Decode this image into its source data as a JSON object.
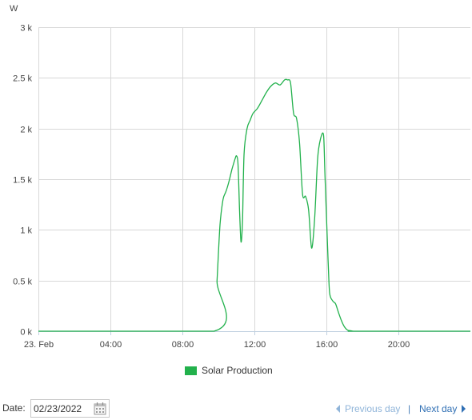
{
  "colors": {
    "series": "#22b14c",
    "grid": "#d8d8d8",
    "axis": "#c0d0e0",
    "link": "#2f6fb4",
    "link_disabled": "#8fb4d9"
  },
  "chart_data": {
    "type": "line",
    "ylabel": "W",
    "ylim": [
      0,
      3000
    ],
    "y_ticks": [
      {
        "value": 0,
        "label": "0 k"
      },
      {
        "value": 500,
        "label": "0.5 k"
      },
      {
        "value": 1000,
        "label": "1 k"
      },
      {
        "value": 1500,
        "label": "1.5 k"
      },
      {
        "value": 2000,
        "label": "2 k"
      },
      {
        "value": 2500,
        "label": "2.5 k"
      },
      {
        "value": 3000,
        "label": "3 k"
      }
    ],
    "xlim": [
      "00:00",
      "23:59"
    ],
    "x_ticks": [
      {
        "value": "00:00",
        "label": "23. Feb"
      },
      {
        "value": "04:00",
        "label": "04:00"
      },
      {
        "value": "08:00",
        "label": "08:00"
      },
      {
        "value": "12:00",
        "label": "12:00"
      },
      {
        "value": "16:00",
        "label": "16:00"
      },
      {
        "value": "20:00",
        "label": "20:00"
      }
    ],
    "grid": true,
    "legend": "bottom",
    "series": [
      {
        "name": "Solar Production",
        "x": [
          "00:00",
          "09:45",
          "09:55",
          "10:05",
          "10:15",
          "10:25",
          "10:35",
          "10:45",
          "10:55",
          "11:00",
          "11:05",
          "11:10",
          "11:15",
          "11:20",
          "11:25",
          "11:35",
          "11:45",
          "11:55",
          "12:10",
          "12:25",
          "12:40",
          "12:55",
          "13:10",
          "13:25",
          "13:40",
          "13:50",
          "14:00",
          "14:10",
          "14:20",
          "14:30",
          "14:40",
          "14:50",
          "15:00",
          "15:10",
          "15:20",
          "15:30",
          "15:40",
          "15:50",
          "15:55",
          "16:05",
          "16:10",
          "16:20",
          "16:30",
          "16:40",
          "16:50",
          "17:00",
          "17:10",
          "17:20",
          "17:30",
          "17:40",
          "23:59"
        ],
        "values": [
          0,
          0,
          500,
          1050,
          1300,
          1380,
          1480,
          1600,
          1700,
          1730,
          1650,
          1200,
          880,
          1100,
          1750,
          2000,
          2080,
          2150,
          2200,
          2280,
          2360,
          2420,
          2450,
          2430,
          2480,
          2480,
          2450,
          2150,
          2100,
          1850,
          1350,
          1330,
          1200,
          820,
          1100,
          1700,
          1900,
          1930,
          1500,
          700,
          380,
          300,
          270,
          180,
          100,
          40,
          10,
          5,
          0,
          0,
          0
        ]
      }
    ]
  },
  "legend": {
    "label": "Solar Production"
  },
  "footer": {
    "date_label": "Date:",
    "date_value": "02/23/2022",
    "prev_label": "Previous day",
    "separator": "|",
    "next_label": "Next day"
  }
}
